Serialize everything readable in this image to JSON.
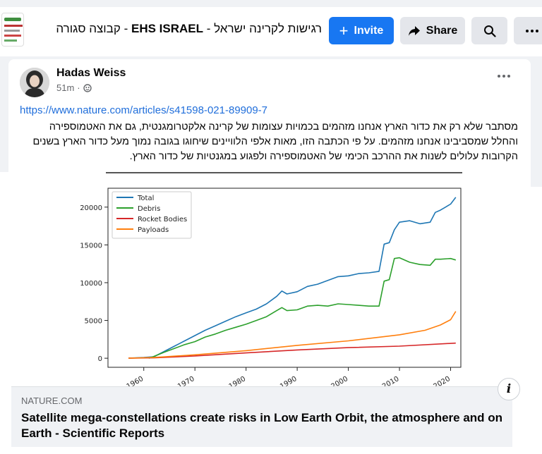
{
  "group": {
    "title_rest": "רגישות לקרינה ישראל - ",
    "title_brand": "EHS ISRAEL",
    "title_suffix": " - קבוצה סגורה"
  },
  "actions": {
    "invite_label": "Invite",
    "share_label": "Share"
  },
  "post": {
    "author": "Hadas Weiss",
    "time": "51m",
    "link": "https://www.nature.com/articles/s41598-021-89909-7",
    "text": "מסתבר שלא רק את כדור הארץ אנחנו מזהמים בכמויות עצומות של קרינה אלקטרומגנטית, גם את האטמוספירה והחלל שמסביבינו אנחנו מזהמים. על פי הכתבה הזו, מאות אלפי הלוויינים שיחוגו בגובה נמוך מעל כדור הארץ בשנים הקרובות עלולים לשנות את ההרכב הכימי של האטמוספירה ולפגוע במגנטיות של כדור הארץ."
  },
  "preview": {
    "domain": "NATURE.COM",
    "headline": "Satellite mega-constellations create risks in Low Earth Orbit, the atmosphere and on Earth - Scientific Reports",
    "info_glyph": "i"
  },
  "chart_data": {
    "type": "line",
    "title": "",
    "xlabel": "",
    "ylabel": "",
    "xlim": [
      1953,
      2022
    ],
    "ylim": [
      -1200,
      22500
    ],
    "x_ticks": [
      1960,
      1970,
      1980,
      1990,
      2000,
      2010,
      2020
    ],
    "y_ticks": [
      0,
      5000,
      10000,
      15000,
      20000
    ],
    "legend_position": "top-left",
    "grid": false,
    "series": [
      {
        "name": "Total",
        "color": "#1f77b4",
        "points": [
          [
            1957,
            0
          ],
          [
            1960,
            100
          ],
          [
            1962,
            200
          ],
          [
            1964,
            900
          ],
          [
            1966,
            1600
          ],
          [
            1968,
            2300
          ],
          [
            1970,
            3000
          ],
          [
            1972,
            3700
          ],
          [
            1974,
            4300
          ],
          [
            1976,
            4900
          ],
          [
            1978,
            5500
          ],
          [
            1980,
            6000
          ],
          [
            1982,
            6500
          ],
          [
            1984,
            7200
          ],
          [
            1986,
            8200
          ],
          [
            1987,
            8900
          ],
          [
            1988,
            8500
          ],
          [
            1990,
            8800
          ],
          [
            1992,
            9500
          ],
          [
            1994,
            9800
          ],
          [
            1996,
            10300
          ],
          [
            1998,
            10800
          ],
          [
            2000,
            10900
          ],
          [
            2002,
            11200
          ],
          [
            2004,
            11300
          ],
          [
            2006,
            11500
          ],
          [
            2007,
            15100
          ],
          [
            2008,
            15300
          ],
          [
            2009,
            17000
          ],
          [
            2010,
            18000
          ],
          [
            2012,
            18200
          ],
          [
            2014,
            17800
          ],
          [
            2016,
            18000
          ],
          [
            2017,
            19300
          ],
          [
            2018,
            19600
          ],
          [
            2019,
            20000
          ],
          [
            2020,
            20400
          ],
          [
            2021,
            21300
          ]
        ]
      },
      {
        "name": "Debris",
        "color": "#2ca02c",
        "points": [
          [
            1961,
            0
          ],
          [
            1962,
            250
          ],
          [
            1964,
            800
          ],
          [
            1966,
            1300
          ],
          [
            1968,
            1800
          ],
          [
            1970,
            2200
          ],
          [
            1972,
            2800
          ],
          [
            1974,
            3200
          ],
          [
            1976,
            3700
          ],
          [
            1978,
            4100
          ],
          [
            1980,
            4500
          ],
          [
            1982,
            5000
          ],
          [
            1984,
            5500
          ],
          [
            1986,
            6300
          ],
          [
            1987,
            6700
          ],
          [
            1988,
            6300
          ],
          [
            1990,
            6400
          ],
          [
            1992,
            6900
          ],
          [
            1994,
            7000
          ],
          [
            1996,
            6900
          ],
          [
            1998,
            7200
          ],
          [
            2000,
            7100
          ],
          [
            2002,
            7000
          ],
          [
            2004,
            6900
          ],
          [
            2006,
            6900
          ],
          [
            2007,
            10200
          ],
          [
            2008,
            10400
          ],
          [
            2009,
            13200
          ],
          [
            2010,
            13300
          ],
          [
            2012,
            12700
          ],
          [
            2014,
            12400
          ],
          [
            2016,
            12300
          ],
          [
            2017,
            13100
          ],
          [
            2018,
            13100
          ],
          [
            2020,
            13200
          ],
          [
            2021,
            13000
          ]
        ]
      },
      {
        "name": "Rocket Bodies",
        "color": "#d62728",
        "points": [
          [
            1957,
            0
          ],
          [
            1962,
            50
          ],
          [
            1970,
            300
          ],
          [
            1980,
            700
          ],
          [
            1990,
            1100
          ],
          [
            2000,
            1400
          ],
          [
            2010,
            1600
          ],
          [
            2021,
            2000
          ]
        ]
      },
      {
        "name": "Payloads",
        "color": "#ff7f0e",
        "points": [
          [
            1957,
            0
          ],
          [
            1962,
            100
          ],
          [
            1970,
            450
          ],
          [
            1980,
            1000
          ],
          [
            1990,
            1700
          ],
          [
            2000,
            2300
          ],
          [
            2010,
            3100
          ],
          [
            2015,
            3700
          ],
          [
            2018,
            4400
          ],
          [
            2020,
            5100
          ],
          [
            2021,
            6200
          ]
        ]
      }
    ]
  }
}
